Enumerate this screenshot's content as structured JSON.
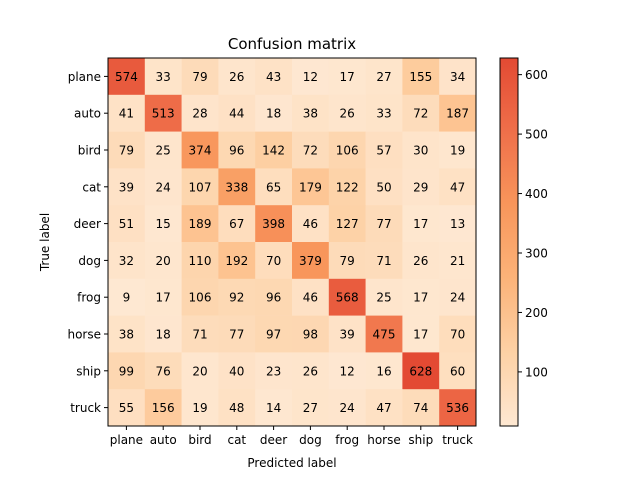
{
  "chart_data": {
    "type": "heatmap",
    "title": "Confusion matrix",
    "xlabel": "Predicted label",
    "ylabel": "True label",
    "x_categories": [
      "plane",
      "auto",
      "bird",
      "cat",
      "deer",
      "dog",
      "frog",
      "horse",
      "ship",
      "truck"
    ],
    "y_categories": [
      "plane",
      "auto",
      "bird",
      "cat",
      "deer",
      "dog",
      "frog",
      "horse",
      "ship",
      "truck"
    ],
    "values": [
      [
        574,
        33,
        79,
        26,
        43,
        12,
        17,
        27,
        155,
        34
      ],
      [
        41,
        513,
        28,
        44,
        18,
        38,
        26,
        33,
        72,
        187
      ],
      [
        79,
        25,
        374,
        96,
        142,
        72,
        106,
        57,
        30,
        19
      ],
      [
        39,
        24,
        107,
        338,
        65,
        179,
        122,
        50,
        29,
        47
      ],
      [
        51,
        15,
        189,
        67,
        398,
        46,
        127,
        77,
        17,
        13
      ],
      [
        32,
        20,
        110,
        192,
        70,
        379,
        79,
        71,
        26,
        21
      ],
      [
        9,
        17,
        106,
        92,
        96,
        46,
        568,
        25,
        17,
        24
      ],
      [
        38,
        18,
        71,
        77,
        97,
        98,
        39,
        475,
        17,
        70
      ],
      [
        99,
        76,
        20,
        40,
        23,
        26,
        12,
        16,
        628,
        60
      ],
      [
        55,
        156,
        19,
        48,
        14,
        27,
        24,
        47,
        74,
        536
      ]
    ],
    "colorbar": {
      "ticks": [
        "100",
        "200",
        "300",
        "400",
        "500",
        "600"
      ],
      "tick_values": [
        100,
        200,
        300,
        400,
        500,
        600
      ],
      "vmin": 9,
      "vmax": 628,
      "colors": [
        "#fee8d2",
        "#fdd1a5",
        "#fcb379",
        "#f8965b",
        "#ef6f4a",
        "#e34a33"
      ]
    }
  }
}
